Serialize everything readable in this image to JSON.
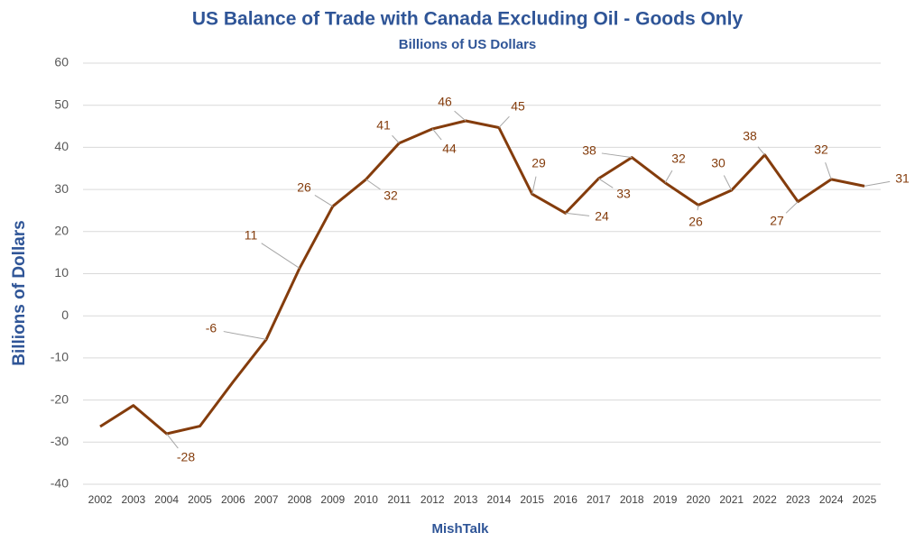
{
  "chart_data": {
    "type": "line",
    "title": "US Balance of Trade with Canada Excluding Oil - Goods Only",
    "subtitle": "Billions of US Dollars",
    "y_label": "Billions of Dollars",
    "caption": "MishTalk",
    "categories": [
      "2002",
      "2003",
      "2004",
      "2005",
      "2006",
      "2007",
      "2008",
      "2009",
      "2010",
      "2011",
      "2012",
      "2013",
      "2014",
      "2015",
      "2016",
      "2017",
      "2018",
      "2019",
      "2020",
      "2021",
      "2022",
      "2023",
      "2024",
      "2025"
    ],
    "series": [
      {
        "name": "US Balance of Trade with Canada Excluding Oil",
        "color": "#843c0c",
        "values": [
          -26.3,
          -21.3,
          -28,
          -26.2,
          -15.7,
          -5.6,
          11.3,
          26,
          32.4,
          41,
          44.4,
          46.3,
          44.7,
          28.9,
          24.4,
          32.6,
          37.6,
          31.6,
          26.3,
          29.8,
          38.2,
          27.1,
          32.4,
          30.8
        ],
        "value_labels": [
          null,
          null,
          "-28",
          null,
          null,
          "-6",
          "11",
          "26",
          "32",
          "41",
          "44",
          "46",
          "45",
          "29",
          "24",
          "33",
          "38",
          "32",
          "26",
          "30",
          "38",
          "27",
          "32",
          "31"
        ]
      }
    ],
    "ylim": [
      -40,
      60
    ],
    "yticks": [
      -40,
      -30,
      -20,
      -10,
      0,
      10,
      20,
      30,
      40,
      50,
      60
    ],
    "grid": true
  }
}
